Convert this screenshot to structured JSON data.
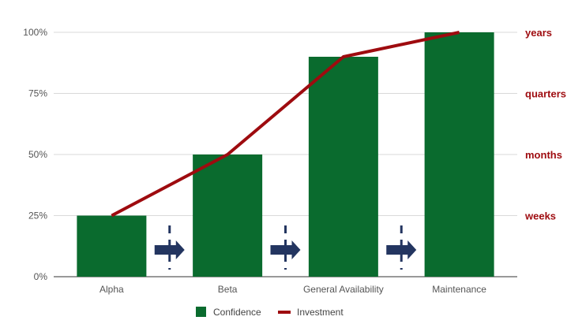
{
  "chart_data": {
    "type": "bar",
    "categories": [
      "Alpha",
      "Beta",
      "General Availability",
      "Maintenance"
    ],
    "series": [
      {
        "name": "Confidence",
        "type": "bar",
        "values": [
          25,
          50,
          90,
          100
        ],
        "color": "#0a6b2e"
      },
      {
        "name": "Investment",
        "type": "line",
        "values": [
          25,
          50,
          90,
          100
        ],
        "color": "#9e0b0f"
      }
    ],
    "y_left": {
      "ylim": [
        0,
        100
      ],
      "ticks": [
        0,
        25,
        50,
        75,
        100
      ],
      "tick_labels": [
        "0%",
        "25%",
        "50%",
        "75%",
        "100%"
      ]
    },
    "y_right": {
      "ticks": [
        25,
        50,
        75,
        100
      ],
      "tick_labels": [
        "weeks",
        "months",
        "quarters",
        "years"
      ],
      "color": "#9e0b0f"
    },
    "between_category_arrows": {
      "count": 3,
      "color": "#233560"
    },
    "grid": true,
    "legend": "bottom",
    "title": "",
    "xlabel": "",
    "ylabel": ""
  }
}
